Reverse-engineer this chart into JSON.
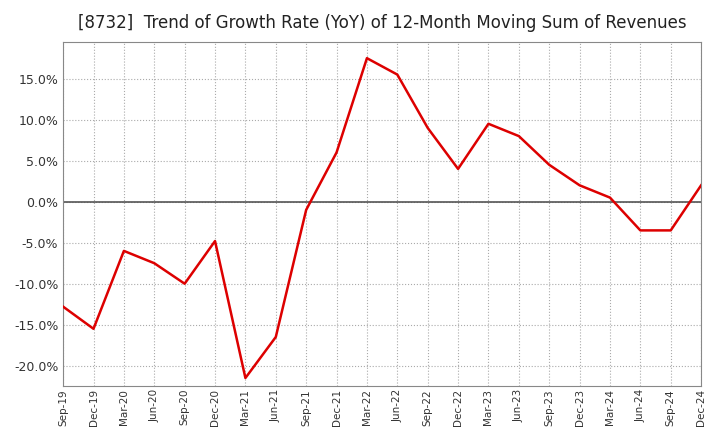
{
  "title": "[8732]  Trend of Growth Rate (YoY) of 12-Month Moving Sum of Revenues",
  "title_fontsize": 12,
  "line_color": "#dd0000",
  "background_color": "#ffffff",
  "plot_bg_color": "#ffffff",
  "grid_color": "#aaaaaa",
  "ylim": [
    -0.225,
    0.195
  ],
  "yticks": [
    -0.2,
    -0.15,
    -0.1,
    -0.05,
    0.0,
    0.05,
    0.1,
    0.15
  ],
  "x_labels": [
    "Sep-19",
    "Dec-19",
    "Mar-20",
    "Jun-20",
    "Sep-20",
    "Dec-20",
    "Mar-21",
    "Jun-21",
    "Sep-21",
    "Dec-21",
    "Mar-22",
    "Jun-22",
    "Sep-22",
    "Dec-22",
    "Mar-23",
    "Jun-23",
    "Sep-23",
    "Dec-23",
    "Mar-24",
    "Jun-24",
    "Sep-24",
    "Dec-24"
  ],
  "values": [
    -0.128,
    -0.155,
    -0.06,
    -0.075,
    -0.1,
    -0.048,
    -0.215,
    -0.165,
    -0.01,
    0.06,
    0.175,
    0.155,
    0.09,
    0.04,
    0.095,
    0.08,
    0.045,
    0.02,
    0.005,
    -0.035,
    -0.035,
    0.02
  ]
}
